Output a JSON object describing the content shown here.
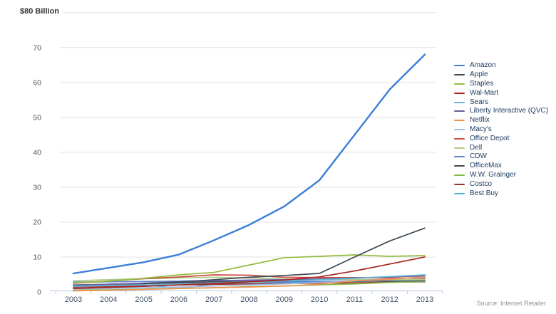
{
  "chart_data": {
    "type": "line",
    "title": "",
    "y_top_label": "$80 Billion",
    "source": "Source: Internet Retailer",
    "x": [
      2003,
      2004,
      2005,
      2006,
      2007,
      2008,
      2009,
      2010,
      2011,
      2012,
      2013
    ],
    "ylim": [
      0,
      80
    ],
    "y_gridlines": [
      80,
      70,
      60,
      50,
      40,
      30,
      20,
      10
    ],
    "y_tick_labels": [
      70,
      60,
      50,
      40,
      30,
      20,
      10,
      0
    ],
    "grid": true,
    "legend_position": "right",
    "colors": {
      "gridline": "#e3e3e3",
      "axis": "#b9c8dd",
      "y_tick_text": "#555555",
      "x_tick_text": "#44546a",
      "legend_text": "#1f3c61"
    },
    "series": [
      {
        "name": "Amazon",
        "color": "#3d7edb",
        "values": [
          5.3,
          6.9,
          8.5,
          10.7,
          14.8,
          19.2,
          24.5,
          32.0,
          45.0,
          58.0,
          68.0
        ]
      },
      {
        "name": "Apple",
        "color": "#3c4a54",
        "values": [
          null,
          null,
          2.4,
          2.8,
          3.5,
          4.2,
          4.7,
          5.3,
          10.0,
          14.6,
          18.3
        ]
      },
      {
        "name": "Staples",
        "color": "#93bc3c",
        "values": [
          2.6,
          3.1,
          3.9,
          4.9,
          5.6,
          7.7,
          9.8,
          10.2,
          10.6,
          10.2,
          10.4
        ]
      },
      {
        "name": "Wal-Mart",
        "color": "#a8231d",
        "values": [
          1.0,
          1.3,
          1.6,
          2.0,
          2.4,
          2.9,
          3.4,
          4.3,
          6.0,
          8.0,
          10.0
        ]
      },
      {
        "name": "Sears",
        "color": "#5fb6d9",
        "values": [
          1.6,
          1.8,
          2.0,
          2.2,
          2.6,
          2.9,
          3.2,
          3.5,
          3.9,
          4.4,
          4.9
        ]
      },
      {
        "name": "Liberty Interactive (QVC)",
        "color": "#6c5b9e",
        "values": [
          1.9,
          2.2,
          2.5,
          2.9,
          3.2,
          3.4,
          3.5,
          3.7,
          4.0,
          4.3,
          4.6
        ]
      },
      {
        "name": "Netflix",
        "color": "#f0934d",
        "values": [
          0.3,
          0.5,
          0.7,
          1.0,
          1.2,
          1.4,
          1.7,
          2.2,
          3.2,
          3.6,
          4.4
        ]
      },
      {
        "name": "Macy's",
        "color": "#a3bce4",
        "values": [
          0.8,
          1.0,
          1.2,
          1.4,
          1.7,
          2.0,
          2.3,
          2.7,
          3.2,
          3.7,
          4.2
        ]
      },
      {
        "name": "Office Depot",
        "color": "#cd4a41",
        "values": [
          2.5,
          3.1,
          3.8,
          4.3,
          4.9,
          4.8,
          4.2,
          4.1,
          4.1,
          4.0,
          3.9
        ]
      },
      {
        "name": "Dell",
        "color": "#afc88a",
        "values": [
          3.2,
          3.5,
          3.8,
          4.0,
          4.2,
          4.0,
          3.7,
          3.6,
          3.6,
          3.5,
          3.5
        ]
      },
      {
        "name": "CDW",
        "color": "#5a83cb",
        "values": [
          2.8,
          2.9,
          3.0,
          3.1,
          3.3,
          3.2,
          2.9,
          3.0,
          3.2,
          3.3,
          3.4
        ]
      },
      {
        "name": "OfficeMax",
        "color": "#414b52",
        "values": [
          2.0,
          2.2,
          2.4,
          2.6,
          2.9,
          3.0,
          2.9,
          3.0,
          3.1,
          3.1,
          3.2
        ]
      },
      {
        "name": "W.W. Grainger",
        "color": "#86ba49",
        "values": [
          0.5,
          0.6,
          0.8,
          1.0,
          1.2,
          1.5,
          1.7,
          2.0,
          2.3,
          2.7,
          3.0
        ]
      },
      {
        "name": "Costco",
        "color": "#9c3430",
        "values": [
          1.4,
          1.6,
          1.8,
          2.0,
          2.2,
          2.3,
          2.4,
          2.5,
          2.6,
          2.8,
          2.9
        ]
      },
      {
        "name": "Best Buy",
        "color": "#4cb2e5",
        "values": [
          1.5,
          1.8,
          2.1,
          1.0,
          2.3,
          2.5,
          2.6,
          2.8,
          3.0,
          3.2,
          3.5
        ]
      }
    ]
  }
}
